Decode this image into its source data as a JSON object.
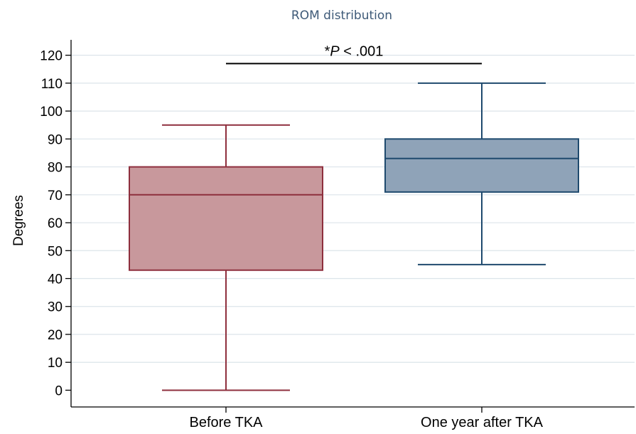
{
  "chart_data": {
    "type": "box",
    "title": "ROM distribution",
    "xlabel": "",
    "ylabel": "Degrees",
    "ylim": [
      -6,
      125
    ],
    "yticks": [
      0,
      10,
      20,
      30,
      40,
      50,
      60,
      70,
      80,
      90,
      100,
      110,
      120
    ],
    "grid": true,
    "categories": [
      "Before TKA",
      "One year after TKA"
    ],
    "boxes": [
      {
        "category": "Before TKA",
        "min": 0,
        "q1": 43,
        "median": 70,
        "q3": 80,
        "max": 95,
        "fill": "#c8989c",
        "stroke": "#8e2f3d"
      },
      {
        "category": "One year after TKA",
        "min": 45,
        "q1": 71,
        "median": 83,
        "q3": 90,
        "max": 110,
        "fill": "#8fa3b8",
        "stroke": "#1f4a6e"
      }
    ],
    "annotation": {
      "prefix": "*",
      "italic": "P",
      "suffix": " < .001",
      "spans": [
        "Before TKA",
        "One year after TKA"
      ],
      "level": 117
    }
  }
}
